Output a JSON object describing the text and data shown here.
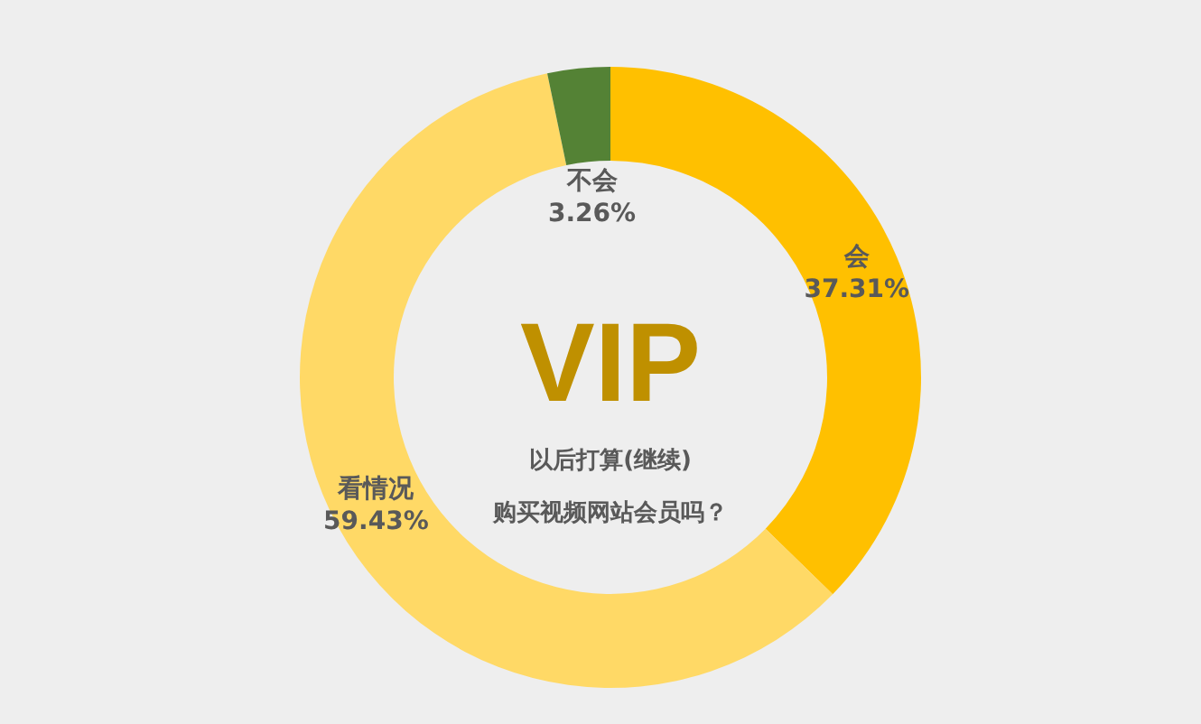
{
  "chart_data": {
    "type": "donut",
    "title": "VIP",
    "subtitle": "以后打算(继续)\n购买视频网站会员吗？",
    "categories": [
      "会",
      "看情况",
      "不会"
    ],
    "values": [
      37.31,
      59.43,
      3.26
    ],
    "colors": [
      "#ffc000",
      "#ffd966",
      "#548235"
    ],
    "value_labels": [
      "37.31%",
      "59.43%",
      "3.26%"
    ]
  }
}
